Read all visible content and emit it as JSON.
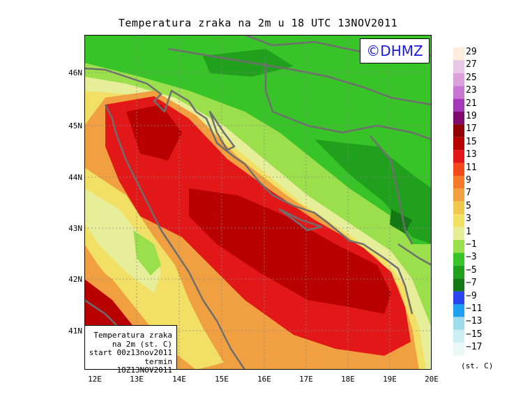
{
  "title": "Temperatura zraka na 2m u 18 UTC 13NOV2011",
  "logo_text": "©DHMZ",
  "axes": {
    "lat_labels": [
      "46N",
      "45N",
      "44N",
      "43N",
      "42N",
      "41N"
    ],
    "lon_labels": [
      "12E",
      "13E",
      "14E",
      "15E",
      "16E",
      "17E",
      "18E",
      "19E",
      "20E"
    ]
  },
  "legend": {
    "labels": [
      "29",
      "27",
      "25",
      "23",
      "21",
      "19",
      "17",
      "15",
      "13",
      "11",
      "9",
      "7",
      "5",
      "3",
      "1",
      "−1",
      "−3",
      "−5",
      "−7",
      "−9",
      "−11",
      "−13",
      "−15",
      "−17"
    ],
    "colors": [
      "#fdeedd",
      "#e8c6e6",
      "#dca0db",
      "#c878d2",
      "#a23ab8",
      "#7d0a6c",
      "#8e0000",
      "#b80000",
      "#e21818",
      "#f24a1a",
      "#f47a2a",
      "#f0a040",
      "#f0c850",
      "#f2e066",
      "#e6ee9a",
      "#9be04c",
      "#38c428",
      "#20a01c",
      "#147814",
      "#2a44f0",
      "#1ea0f0",
      "#9edcec",
      "#cdeef4",
      "#e8f9f8"
    ],
    "unit": "(st. C)"
  },
  "info_box": {
    "line1": "Temperatura zraka",
    "line2": "na 2m (st. C)",
    "line3": "start 00z13nov2011",
    "line4": "termin 18Z13NOV2011"
  }
}
